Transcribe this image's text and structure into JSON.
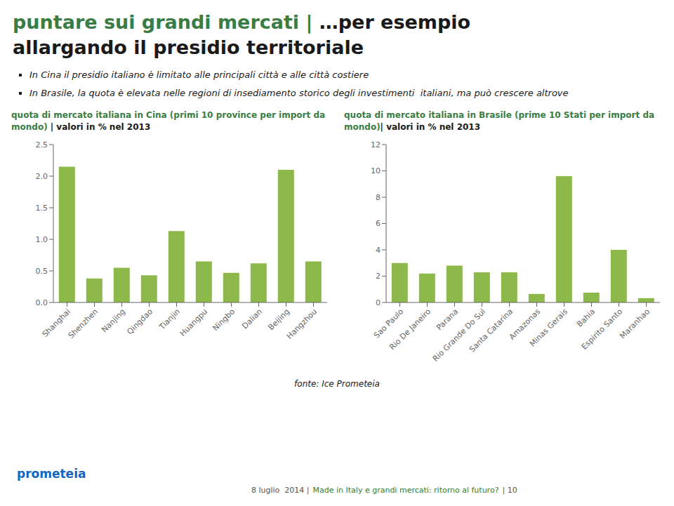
{
  "title": "puntare sui grandi mercati | …per esempio allargando il presidio territoriale",
  "annotations": [
    "In Cina il presidio italiano è limitato alle principali città e alle città costiere",
    "In Brasile, la quota è elevata nelle regioni di insediamento storico degli investimenti  italiani, ma può crescere altrove",
    "fonte: Ice Prometeia",
    "prometeia",
    "8 luglio  2014 |",
    "Made in Italy e grandi mercati: ritorno al futuro?",
    "| 10"
  ],
  "chart_data": [
    {
      "type": "bar",
      "title": "quota di mercato italiana in Cina (primi 10 province per import da mondo)",
      "subtitle": " | valori in % nel 2013",
      "categories": [
        "Shanghai",
        "Shenzhen",
        "Nanjing",
        "Qingdao",
        "Tianjin",
        "Huangpu",
        "Ningbo",
        "Dalian",
        "Beijing",
        "Hangzhou"
      ],
      "values": [
        2.15,
        0.38,
        0.55,
        0.43,
        1.13,
        0.65,
        0.47,
        0.62,
        2.1,
        0.65
      ],
      "color": "#8db84a",
      "ylim": [
        0,
        2.5
      ],
      "yticks": [
        {
          "value": 0,
          "label": "0.0"
        },
        0.5,
        {
          "value": 1,
          "label": "1.0"
        },
        1.5,
        {
          "value": 2,
          "label": "2.0"
        },
        2.5
      ],
      "grid": false
    },
    {
      "type": "bar",
      "title": "quota di mercato italiana in Brasile (prime 10 Stati per import da mondo)",
      "subtitle": "| valori in % nel 2013",
      "categories": [
        "Sao Paulo",
        "Rio De Janeiro",
        "Parana",
        "Rio Grande Do Sul",
        "Santa Catarina",
        "Amazonas",
        "Minas Gerais",
        "Bahia",
        "Espirito Santo",
        "Maranhao"
      ],
      "values": [
        3.0,
        2.2,
        2.8,
        2.3,
        2.3,
        0.65,
        9.6,
        0.75,
        4.0,
        0.33
      ],
      "color": "#8db84a",
      "ylim": [
        0,
        12
      ],
      "yticks": [
        0,
        2,
        4,
        6,
        8,
        10,
        12
      ],
      "grid": false
    }
  ]
}
